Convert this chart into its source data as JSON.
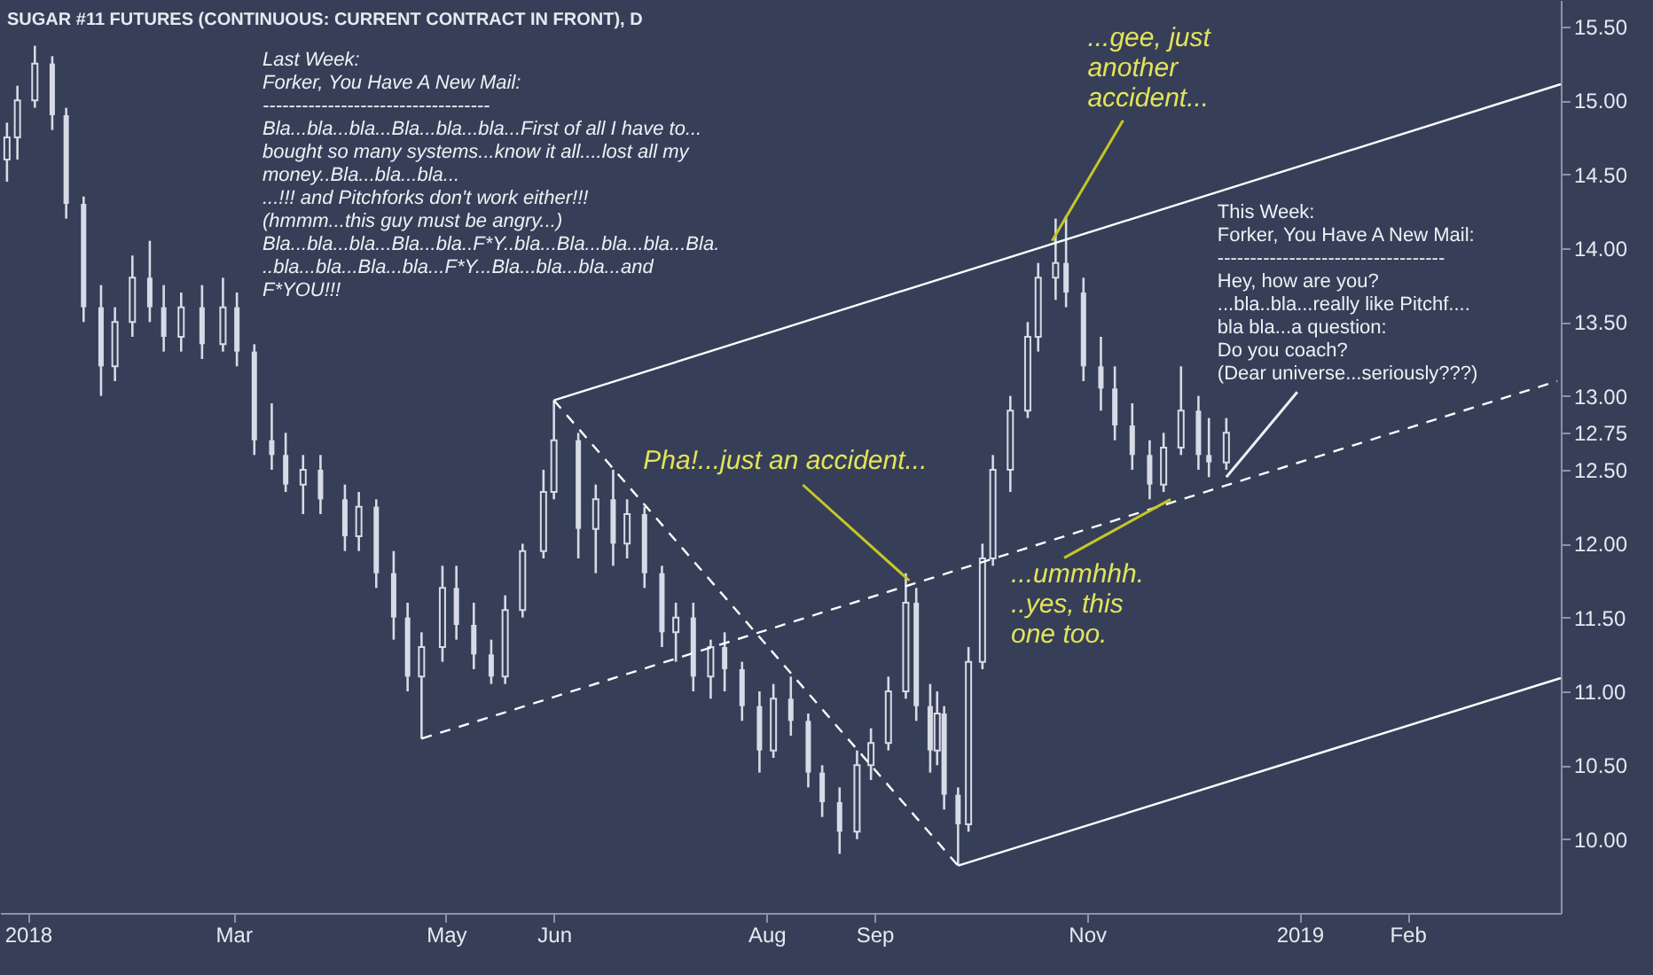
{
  "chart_data": {
    "type": "candlestick",
    "title": "SUGAR #11 FUTURES (CONTINUOUS: CURRENT CONTRACT IN FRONT), D",
    "x": [
      "2017-12-26",
      "2017-12-29",
      "2018-01-03",
      "2018-01-08",
      "2018-01-12",
      "2018-01-17",
      "2018-01-22",
      "2018-01-26",
      "2018-01-31",
      "2018-02-05",
      "2018-02-09",
      "2018-02-14",
      "2018-02-20",
      "2018-02-26",
      "2018-03-02",
      "2018-03-07",
      "2018-03-12",
      "2018-03-16",
      "2018-03-21",
      "2018-03-26",
      "2018-04-02",
      "2018-04-06",
      "2018-04-11",
      "2018-04-16",
      "2018-04-20",
      "2018-04-24",
      "2018-04-30",
      "2018-05-04",
      "2018-05-09",
      "2018-05-14",
      "2018-05-18",
      "2018-05-23",
      "2018-05-29",
      "2018-06-01",
      "2018-06-08",
      "2018-06-13",
      "2018-06-18",
      "2018-06-22",
      "2018-06-27",
      "2018-07-02",
      "2018-07-06",
      "2018-07-11",
      "2018-07-16",
      "2018-07-20",
      "2018-07-25",
      "2018-07-30",
      "2018-08-03",
      "2018-08-08",
      "2018-08-13",
      "2018-08-17",
      "2018-08-22",
      "2018-08-27",
      "2018-08-31",
      "2018-09-05",
      "2018-09-10",
      "2018-09-13",
      "2018-09-17",
      "2018-09-19",
      "2018-09-21",
      "2018-09-25",
      "2018-09-28",
      "2018-10-02",
      "2018-10-05",
      "2018-10-10",
      "2018-10-15",
      "2018-10-18",
      "2018-10-23",
      "2018-10-26",
      "2018-10-31",
      "2018-11-05",
      "2018-11-09",
      "2018-11-14",
      "2018-11-19",
      "2018-11-23",
      "2018-11-28",
      "2018-12-03",
      "2018-12-06",
      "2018-12-11"
    ],
    "ohlc": [
      [
        14.6,
        14.85,
        14.45,
        14.75
      ],
      [
        14.75,
        15.1,
        14.6,
        15.0
      ],
      [
        15.0,
        15.37,
        14.95,
        15.25
      ],
      [
        15.25,
        15.3,
        14.8,
        14.9
      ],
      [
        14.9,
        14.95,
        14.2,
        14.3
      ],
      [
        14.3,
        14.35,
        13.5,
        13.6
      ],
      [
        13.6,
        13.75,
        13.0,
        13.2
      ],
      [
        13.2,
        13.6,
        13.1,
        13.5
      ],
      [
        13.5,
        13.95,
        13.4,
        13.8
      ],
      [
        13.8,
        14.05,
        13.5,
        13.6
      ],
      [
        13.6,
        13.75,
        13.3,
        13.4
      ],
      [
        13.4,
        13.7,
        13.3,
        13.6
      ],
      [
        13.6,
        13.75,
        13.25,
        13.35
      ],
      [
        13.35,
        13.8,
        13.3,
        13.6
      ],
      [
        13.6,
        13.7,
        13.2,
        13.3
      ],
      [
        13.3,
        13.35,
        12.6,
        12.7
      ],
      [
        12.7,
        12.95,
        12.5,
        12.6
      ],
      [
        12.6,
        12.75,
        12.35,
        12.4
      ],
      [
        12.4,
        12.6,
        12.2,
        12.5
      ],
      [
        12.5,
        12.6,
        12.2,
        12.3
      ],
      [
        12.3,
        12.4,
        11.95,
        12.05
      ],
      [
        12.05,
        12.35,
        11.95,
        12.25
      ],
      [
        12.25,
        12.3,
        11.7,
        11.8
      ],
      [
        11.8,
        11.95,
        11.35,
        11.5
      ],
      [
        11.5,
        11.6,
        11.0,
        11.1
      ],
      [
        11.1,
        11.4,
        10.68,
        11.3
      ],
      [
        11.3,
        11.85,
        11.2,
        11.7
      ],
      [
        11.7,
        11.85,
        11.35,
        11.45
      ],
      [
        11.45,
        11.6,
        11.15,
        11.25
      ],
      [
        11.25,
        11.35,
        11.05,
        11.1
      ],
      [
        11.1,
        11.65,
        11.05,
        11.55
      ],
      [
        11.55,
        12.0,
        11.5,
        11.95
      ],
      [
        11.95,
        12.5,
        11.9,
        12.35
      ],
      [
        12.35,
        12.97,
        12.3,
        12.7
      ],
      [
        12.7,
        12.75,
        11.9,
        12.1
      ],
      [
        12.1,
        12.4,
        11.8,
        12.3
      ],
      [
        12.3,
        12.5,
        11.85,
        12.0
      ],
      [
        12.0,
        12.3,
        11.9,
        12.2
      ],
      [
        12.2,
        12.25,
        11.7,
        11.8
      ],
      [
        11.8,
        11.85,
        11.3,
        11.4
      ],
      [
        11.4,
        11.6,
        11.2,
        11.5
      ],
      [
        11.5,
        11.6,
        11.0,
        11.1
      ],
      [
        11.1,
        11.35,
        10.95,
        11.3
      ],
      [
        11.3,
        11.4,
        11.0,
        11.15
      ],
      [
        11.15,
        11.2,
        10.8,
        10.9
      ],
      [
        10.9,
        11.0,
        10.45,
        10.6
      ],
      [
        10.6,
        11.05,
        10.55,
        10.95
      ],
      [
        10.95,
        11.1,
        10.7,
        10.8
      ],
      [
        10.8,
        10.85,
        10.35,
        10.45
      ],
      [
        10.45,
        10.5,
        10.15,
        10.25
      ],
      [
        10.25,
        10.35,
        9.9,
        10.05
      ],
      [
        10.05,
        10.6,
        10.0,
        10.5
      ],
      [
        10.5,
        10.75,
        10.4,
        10.65
      ],
      [
        10.65,
        11.1,
        10.6,
        11.0
      ],
      [
        11.0,
        11.8,
        10.95,
        11.6
      ],
      [
        11.6,
        11.7,
        10.8,
        10.9
      ],
      [
        10.9,
        11.05,
        10.45,
        10.6
      ],
      [
        10.6,
        11.0,
        10.5,
        10.85
      ],
      [
        10.85,
        10.9,
        10.2,
        10.3
      ],
      [
        10.3,
        10.35,
        9.82,
        10.1
      ],
      [
        10.1,
        11.3,
        10.05,
        11.2
      ],
      [
        11.2,
        12.0,
        11.15,
        11.9
      ],
      [
        11.9,
        12.6,
        11.85,
        12.5
      ],
      [
        12.5,
        13.0,
        12.35,
        12.9
      ],
      [
        12.9,
        13.5,
        12.85,
        13.4
      ],
      [
        13.4,
        13.9,
        13.3,
        13.8
      ],
      [
        13.8,
        14.2,
        13.65,
        13.9
      ],
      [
        13.9,
        14.22,
        13.6,
        13.7
      ],
      [
        13.7,
        13.8,
        13.1,
        13.2
      ],
      [
        13.2,
        13.4,
        12.9,
        13.05
      ],
      [
        13.05,
        13.2,
        12.7,
        12.8
      ],
      [
        12.8,
        12.95,
        12.5,
        12.6
      ],
      [
        12.6,
        12.7,
        12.3,
        12.4
      ],
      [
        12.4,
        12.75,
        12.35,
        12.65
      ],
      [
        12.65,
        13.2,
        12.6,
        12.9
      ],
      [
        12.9,
        13.0,
        12.5,
        12.6
      ],
      [
        12.6,
        12.85,
        12.45,
        12.55
      ],
      [
        12.55,
        12.85,
        12.5,
        12.75
      ]
    ],
    "colors": [
      "#d7dbe6",
      "#d7dbe6",
      "#d7dbe6",
      "#d7dbe6",
      "#d7dbe6",
      "#d7dbe6",
      "#d7dbe6",
      "#d7dbe6",
      "#d7dbe6",
      "#d7dbe6",
      "#d7dbe6",
      "#d7dbe6",
      "#d7dbe6",
      "#d7dbe6",
      "#d7dbe6",
      "#d7dbe6",
      "#d7dbe6",
      "#d7dbe6",
      "#d7dbe6",
      "#d7dbe6",
      "#d7dbe6",
      "#d7dbe6",
      "#d7dbe6",
      "#d7dbe6",
      "#d7dbe6",
      "#d7dbe6",
      "#d7dbe6",
      "#d7dbe6",
      "#d7dbe6",
      "#d7dbe6",
      "#d7dbe6",
      "#d7dbe6",
      "#d7dbe6",
      "#d7dbe6",
      "#d7dbe6",
      "#d7dbe6",
      "#d7dbe6",
      "#d7dbe6",
      "#d7dbe6",
      "#d7dbe6",
      "#d7dbe6",
      "#d7dbe6",
      "#d7dbe6",
      "#d7dbe6",
      "#d7dbe6",
      "#d7dbe6",
      "#d7dbe6",
      "#d7dbe6",
      "#d7dbe6",
      "#d7dbe6",
      "#d7dbe6",
      "#d7dbe6",
      "#d7dbe6",
      "#d7dbe6",
      "#d7dbe6",
      "#d7dbe6",
      "#d7dbe6",
      "#d7dbe6",
      "#d7dbe6",
      "#d7dbe6",
      "#d7dbe6",
      "#d7dbe6",
      "#d7dbe6",
      "#d7dbe6",
      "#d7dbe6",
      "#d7dbe6",
      "#d7dbe6",
      "#d7dbe6",
      "#d7dbe6",
      "#d7dbe6",
      "#d7dbe6",
      "#d7dbe6",
      "#d7dbe6",
      "#d7dbe6",
      "#d7dbe6",
      "#d7dbe6",
      "#d7dbe6",
      "#d7dbe6"
    ],
    "series": [
      {
        "type": "line",
        "x": [
          "2018-04-24",
          "2019-03-16"
        ],
        "values": [
          10.68,
          13.1
        ],
        "color": "#ffffff",
        "line_style": "dashed"
      },
      {
        "type": "line",
        "x": [
          "2018-06-01",
          "2018-09-25"
        ],
        "values": [
          12.97,
          9.82
        ],
        "color": "#ffffff",
        "line_style": "dashed"
      },
      {
        "type": "line",
        "x": [
          "2018-06-01",
          "2019-03-17"
        ],
        "values": [
          12.97,
          15.11
        ],
        "color": "#ffffff",
        "line_style": "solid"
      },
      {
        "type": "line",
        "x": [
          "2018-09-25",
          "2019-03-17"
        ],
        "values": [
          9.82,
          11.09
        ],
        "color": "#ffffff",
        "line_style": "solid"
      }
    ],
    "xlim": [
      "2017-12-24",
      "2019-03-17"
    ],
    "xticks": [
      {
        "value": "2018-01-01",
        "label": "2018"
      },
      {
        "value": "2018-03-01",
        "label": "Mar"
      },
      {
        "value": "2018-05-01",
        "label": "May"
      },
      {
        "value": "2018-06-01",
        "label": "Jun"
      },
      {
        "value": "2018-08-01",
        "label": "Aug"
      },
      {
        "value": "2018-09-01",
        "label": "Sep"
      },
      {
        "value": "2018-11-01",
        "label": "Nov"
      },
      {
        "value": "2019-01-01",
        "label": "2019"
      },
      {
        "value": "2019-02-01",
        "label": "Feb"
      }
    ],
    "ylim": [
      9.5,
      15.68
    ],
    "yticks": [
      {
        "value": 10,
        "label": "10.00"
      },
      {
        "value": 10.5,
        "label": "10.50"
      },
      {
        "value": 11,
        "label": "11.00"
      },
      {
        "value": 11.5,
        "label": "11.50"
      },
      {
        "value": 12,
        "label": "12.00"
      },
      {
        "value": 12.5,
        "label": "12.50"
      },
      {
        "value": 12.75,
        "label": "12.75"
      },
      {
        "value": 13,
        "label": "13.00"
      },
      {
        "value": 13.5,
        "label": "13.50"
      },
      {
        "value": 14,
        "label": "14.00"
      },
      {
        "value": 14.5,
        "label": "14.50"
      },
      {
        "value": 15,
        "label": "15.00"
      },
      {
        "value": 15.5,
        "label": "15.50"
      }
    ],
    "grid": false,
    "annotations": [
      "Last Week:\n\nForker, You Have A New Mail:\n-----------------------------------\n\nBla...bla...bla...Bla...bla...bla...First of all I have to...\nbought so many systems...know it all....lost all my\nmoney..Bla...bla...bla...\n...!!! and Pitchforks don't work either!!!\n\n(hmmm...this guy must be angry...)\n\nBla...bla...bla...Bla...bla..F*Y..bla...Bla...bla...bla...Bla.\n..bla...bla...Bla...bla...F*Y...Bla...bla...bla...and\nF*YOU!!!",
      {
        "text": "Pha!...just an accident...",
        "x": "2018-09-11",
        "y": 11.75
      },
      {
        "text": "...gee, just\nanother\naccident...",
        "x": "2018-10-22",
        "y": 14.05
      },
      {
        "text": "...ummhhh.\n..yes, this\none too.",
        "x": "2018-11-25",
        "y": 12.3
      },
      {
        "text": "This Week:\n\nForker, You Have A New Mail:\n-----------------------------------\nHey, how are you?\n...bla..bla...really like Pitchf....\nbla bla...a question:\nDo you coach?\n\n\n(Dear universe...seriously???)",
        "x": "2018-12-11",
        "y": 12.45
      }
    ]
  }
}
